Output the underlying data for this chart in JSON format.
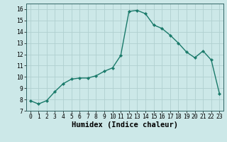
{
  "x": [
    0,
    1,
    2,
    3,
    4,
    5,
    6,
    7,
    8,
    9,
    10,
    11,
    12,
    13,
    14,
    15,
    16,
    17,
    18,
    19,
    20,
    21,
    22,
    23
  ],
  "y": [
    7.9,
    7.6,
    7.9,
    8.7,
    9.4,
    9.8,
    9.9,
    9.9,
    10.1,
    10.5,
    10.8,
    11.9,
    15.8,
    15.9,
    15.6,
    14.6,
    14.3,
    13.7,
    13.0,
    12.2,
    11.7,
    12.3,
    11.5,
    8.5
  ],
  "line_color": "#1a7a6a",
  "marker": "D",
  "marker_size": 2.2,
  "bg_color": "#cce8e8",
  "grid_color": "#b0d0d0",
  "xlabel": "Humidex (Indice chaleur)",
  "xlim": [
    -0.5,
    23.5
  ],
  "ylim": [
    7,
    16.5
  ],
  "yticks": [
    7,
    8,
    9,
    10,
    11,
    12,
    13,
    14,
    15,
    16
  ],
  "xticks": [
    0,
    1,
    2,
    3,
    4,
    5,
    6,
    7,
    8,
    9,
    10,
    11,
    12,
    13,
    14,
    15,
    16,
    17,
    18,
    19,
    20,
    21,
    22,
    23
  ],
  "tick_label_fontsize": 5.8,
  "xlabel_fontsize": 7.5,
  "linewidth": 1.0
}
